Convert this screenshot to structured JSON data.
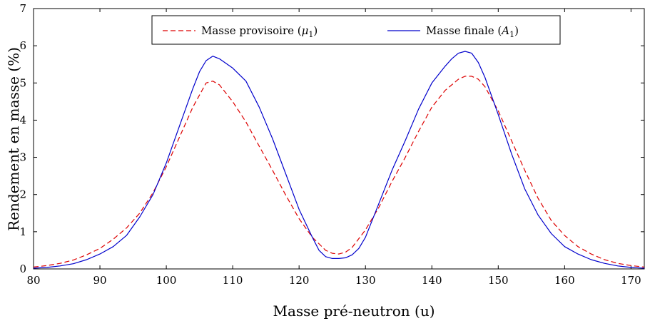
{
  "chart_data": {
    "type": "line",
    "xlabel": "Masse pré-neutron (u)",
    "ylabel": "Rendement en masse (%)",
    "xlim": [
      80,
      172
    ],
    "ylim": [
      0,
      7
    ],
    "xticks": [
      80,
      90,
      100,
      110,
      120,
      130,
      140,
      150,
      160,
      170
    ],
    "yticks": [
      0,
      1,
      2,
      3,
      4,
      5,
      6,
      7
    ],
    "legend": {
      "placement": "top-center"
    },
    "grid": false,
    "series": [
      {
        "name": "Masse provisoire (μ₁)",
        "legend_main": "Masse provisoire (",
        "legend_sym": "μ",
        "legend_sub": "1",
        "legend_close": ")",
        "color": "#dd0000",
        "style": "dashed",
        "x": [
          80,
          82,
          84,
          86,
          88,
          90,
          92,
          94,
          96,
          98,
          100,
          102,
          104,
          106,
          107,
          108,
          110,
          112,
          114,
          116,
          118,
          120,
          122,
          124,
          125,
          126,
          127,
          128,
          130,
          132,
          134,
          136,
          138,
          140,
          142,
          144,
          145,
          146,
          147,
          148,
          150,
          152,
          154,
          156,
          158,
          160,
          162,
          164,
          166,
          168,
          170,
          172
        ],
        "y": [
          0.05,
          0.09,
          0.15,
          0.24,
          0.38,
          0.55,
          0.8,
          1.1,
          1.5,
          2.05,
          2.75,
          3.55,
          4.35,
          5.0,
          5.05,
          4.95,
          4.5,
          3.95,
          3.3,
          2.65,
          1.98,
          1.35,
          0.85,
          0.5,
          0.42,
          0.4,
          0.45,
          0.58,
          1.05,
          1.65,
          2.35,
          3.0,
          3.7,
          4.35,
          4.8,
          5.1,
          5.18,
          5.18,
          5.1,
          4.9,
          4.25,
          3.45,
          2.65,
          1.9,
          1.3,
          0.9,
          0.6,
          0.4,
          0.25,
          0.15,
          0.09,
          0.05
        ]
      },
      {
        "name": "Masse finale (A₁)",
        "legend_main": "Masse finale (",
        "legend_sym": "A",
        "legend_sub": "1",
        "legend_close": ")",
        "color": "#0000cc",
        "style": "solid",
        "x": [
          80,
          82,
          84,
          86,
          88,
          90,
          92,
          94,
          96,
          98,
          100,
          102,
          104,
          105,
          106,
          107,
          108,
          110,
          112,
          114,
          116,
          118,
          120,
          122,
          123,
          124,
          125,
          126,
          127,
          128,
          129,
          130,
          132,
          134,
          136,
          138,
          140,
          142,
          143,
          144,
          145,
          146,
          147,
          148,
          150,
          152,
          154,
          156,
          158,
          160,
          162,
          164,
          166,
          168,
          170,
          172
        ],
        "y": [
          0.02,
          0.04,
          0.08,
          0.14,
          0.25,
          0.4,
          0.6,
          0.9,
          1.4,
          2.0,
          2.85,
          3.85,
          4.85,
          5.3,
          5.6,
          5.72,
          5.65,
          5.4,
          5.05,
          4.35,
          3.5,
          2.55,
          1.6,
          0.85,
          0.5,
          0.33,
          0.28,
          0.28,
          0.3,
          0.38,
          0.55,
          0.85,
          1.75,
          2.65,
          3.45,
          4.3,
          5.0,
          5.45,
          5.65,
          5.8,
          5.85,
          5.8,
          5.55,
          5.15,
          4.15,
          3.1,
          2.15,
          1.45,
          0.95,
          0.6,
          0.4,
          0.25,
          0.15,
          0.08,
          0.04,
          0.02
        ]
      }
    ]
  }
}
